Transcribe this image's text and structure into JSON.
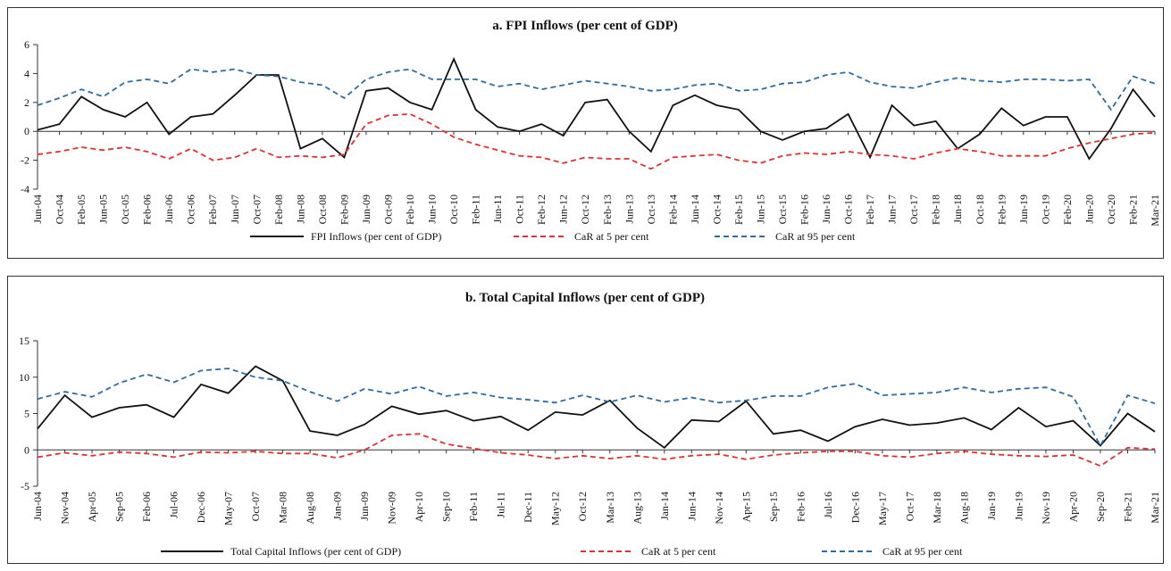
{
  "chart_data": [
    {
      "type": "line",
      "title": "a. FPI Inflows (per cent of GDP)",
      "categories": [
        "Jun-04",
        "Oct-04",
        "Feb-05",
        "Jun-05",
        "Oct-05",
        "Feb-06",
        "Jun-06",
        "Oct-06",
        "Feb-07",
        "Jun-07",
        "Oct-07",
        "Feb-08",
        "Jun-08",
        "Oct-08",
        "Feb-09",
        "Jun-09",
        "Oct-09",
        "Feb-10",
        "Jun-10",
        "Oct-10",
        "Feb-11",
        "Jun-11",
        "Oct-11",
        "Feb-12",
        "Jun-12",
        "Oct-12",
        "Feb-13",
        "Jun-13",
        "Oct-13",
        "Feb-14",
        "Jun-14",
        "Oct-14",
        "Feb-15",
        "Jun-15",
        "Oct-15",
        "Feb-16",
        "Jun-16",
        "Oct-16",
        "Feb-17",
        "Jun-17",
        "Oct-17",
        "Feb-18",
        "Jun-18",
        "Oct-18",
        "Feb-19",
        "Jun-19",
        "Oct-19",
        "Feb-20",
        "Jun-20",
        "Oct-20",
        "Feb-21",
        "Mar-21"
      ],
      "series": [
        {
          "name": "FPI Inflows (per cent of GDP)",
          "color": "#111111",
          "dashed": false,
          "values": [
            0.1,
            0.5,
            2.4,
            1.5,
            1.0,
            2.0,
            -0.2,
            1.0,
            1.2,
            2.5,
            3.9,
            3.9,
            -1.2,
            -0.5,
            -1.8,
            2.8,
            3.0,
            2.0,
            1.5,
            5.0,
            1.5,
            0.3,
            0.0,
            0.5,
            -0.3,
            2.0,
            2.2,
            0.0,
            -1.4,
            1.8,
            2.5,
            1.8,
            1.5,
            0.0,
            -0.6,
            0.0,
            0.2,
            1.2,
            -1.8,
            1.8,
            0.4,
            0.7,
            -1.2,
            -0.2,
            1.6,
            0.4,
            1.0,
            1.0,
            -1.9,
            0.2,
            2.9,
            1.0
          ]
        },
        {
          "name": "CaR at 5 per cent",
          "color": "#e03030",
          "dashed": true,
          "values": [
            -1.6,
            -1.4,
            -1.1,
            -1.3,
            -1.1,
            -1.4,
            -1.9,
            -1.2,
            -2.0,
            -1.8,
            -1.2,
            -1.8,
            -1.7,
            -1.8,
            -1.6,
            0.5,
            1.1,
            1.2,
            0.5,
            -0.4,
            -0.9,
            -1.3,
            -1.7,
            -1.8,
            -2.2,
            -1.8,
            -1.9,
            -1.9,
            -2.6,
            -1.8,
            -1.7,
            -1.6,
            -2.0,
            -2.2,
            -1.7,
            -1.5,
            -1.6,
            -1.4,
            -1.6,
            -1.7,
            -1.9,
            -1.5,
            -1.2,
            -1.4,
            -1.7,
            -1.7,
            -1.7,
            -1.2,
            -0.8,
            -0.5,
            -0.2,
            -0.1
          ]
        },
        {
          "name": "CaR at 95 per cent",
          "color": "#2e6ca4",
          "dashed": true,
          "values": [
            1.8,
            2.3,
            2.9,
            2.4,
            3.4,
            3.6,
            3.3,
            4.3,
            4.1,
            4.3,
            3.9,
            3.8,
            3.4,
            3.2,
            2.3,
            3.6,
            4.1,
            4.3,
            3.6,
            3.6,
            3.6,
            3.1,
            3.3,
            2.9,
            3.2,
            3.5,
            3.3,
            3.1,
            2.8,
            2.9,
            3.2,
            3.3,
            2.8,
            2.9,
            3.3,
            3.4,
            3.9,
            4.1,
            3.4,
            3.1,
            3.0,
            3.4,
            3.7,
            3.5,
            3.4,
            3.6,
            3.6,
            3.5,
            3.6,
            1.5,
            3.8,
            3.3
          ]
        }
      ],
      "ylim": [
        -4,
        6
      ],
      "yticks": [
        -4,
        -2,
        0,
        2,
        4,
        6
      ],
      "legend": "bottom"
    },
    {
      "type": "line",
      "title": "b. Total Capital Inflows (per cent of GDP)",
      "categories": [
        "Jun-04",
        "Nov-04",
        "Apr-05",
        "Sep-05",
        "Feb-06",
        "Jul-06",
        "Dec-06",
        "May-07",
        "Oct-07",
        "Mar-08",
        "Aug-08",
        "Jan-09",
        "Jun-09",
        "Nov-09",
        "Apr-10",
        "Sep-10",
        "Feb-11",
        "Jul-11",
        "Dec-11",
        "May-12",
        "Oct-12",
        "Mar-13",
        "Aug-13",
        "Jan-14",
        "Jun-14",
        "Nov-14",
        "Apr-15",
        "Sep-15",
        "Feb-16",
        "Jul-16",
        "Dec-16",
        "May-17",
        "Oct-17",
        "Mar-18",
        "Aug-18",
        "Jan-19",
        "Jun-19",
        "Nov-19",
        "Apr-20",
        "Sep-20",
        "Feb-21",
        "Mar-21"
      ],
      "series": [
        {
          "name": "Total Capital Inflows (per cent of GDP)",
          "color": "#111111",
          "dashed": false,
          "values": [
            2.9,
            7.5,
            4.5,
            5.8,
            6.2,
            4.5,
            9.0,
            7.8,
            11.5,
            9.5,
            2.6,
            2.0,
            3.5,
            6.0,
            4.9,
            5.4,
            4.0,
            4.6,
            2.7,
            5.2,
            4.8,
            6.8,
            3.0,
            0.3,
            4.1,
            3.9,
            6.7,
            2.2,
            2.7,
            1.2,
            3.2,
            4.2,
            3.4,
            3.7,
            4.4,
            2.8,
            5.8,
            3.2,
            4.0,
            0.6,
            5.0,
            2.5
          ]
        },
        {
          "name": "CaR at 5 per cent",
          "color": "#e03030",
          "dashed": true,
          "values": [
            -1.0,
            -0.4,
            -0.8,
            -0.3,
            -0.5,
            -1.0,
            -0.3,
            -0.4,
            -0.2,
            -0.5,
            -0.5,
            -1.1,
            0.0,
            2.0,
            2.2,
            0.8,
            0.2,
            -0.4,
            -0.7,
            -1.2,
            -0.8,
            -1.2,
            -0.8,
            -1.3,
            -0.8,
            -0.6,
            -1.3,
            -0.7,
            -0.4,
            -0.2,
            -0.2,
            -0.8,
            -1.0,
            -0.5,
            -0.2,
            -0.6,
            -0.8,
            -0.9,
            -0.7,
            -2.2,
            0.3,
            0.1
          ]
        },
        {
          "name": "CaR at 95 per cent",
          "color": "#2e6ca4",
          "dashed": true,
          "values": [
            7.0,
            8.0,
            7.3,
            9.2,
            10.4,
            9.3,
            10.9,
            11.2,
            10.0,
            9.5,
            8.0,
            6.7,
            8.4,
            7.7,
            8.7,
            7.4,
            7.9,
            7.2,
            6.9,
            6.5,
            7.5,
            6.6,
            7.5,
            6.6,
            7.2,
            6.5,
            6.8,
            7.4,
            7.4,
            8.6,
            9.1,
            7.5,
            7.7,
            7.9,
            8.6,
            7.9,
            8.4,
            8.6,
            7.3,
            0.6,
            7.5,
            6.4
          ]
        }
      ],
      "ylim": [
        -5,
        15
      ],
      "yticks": [
        -5,
        0,
        5,
        10,
        15
      ],
      "legend": "bottom"
    }
  ]
}
